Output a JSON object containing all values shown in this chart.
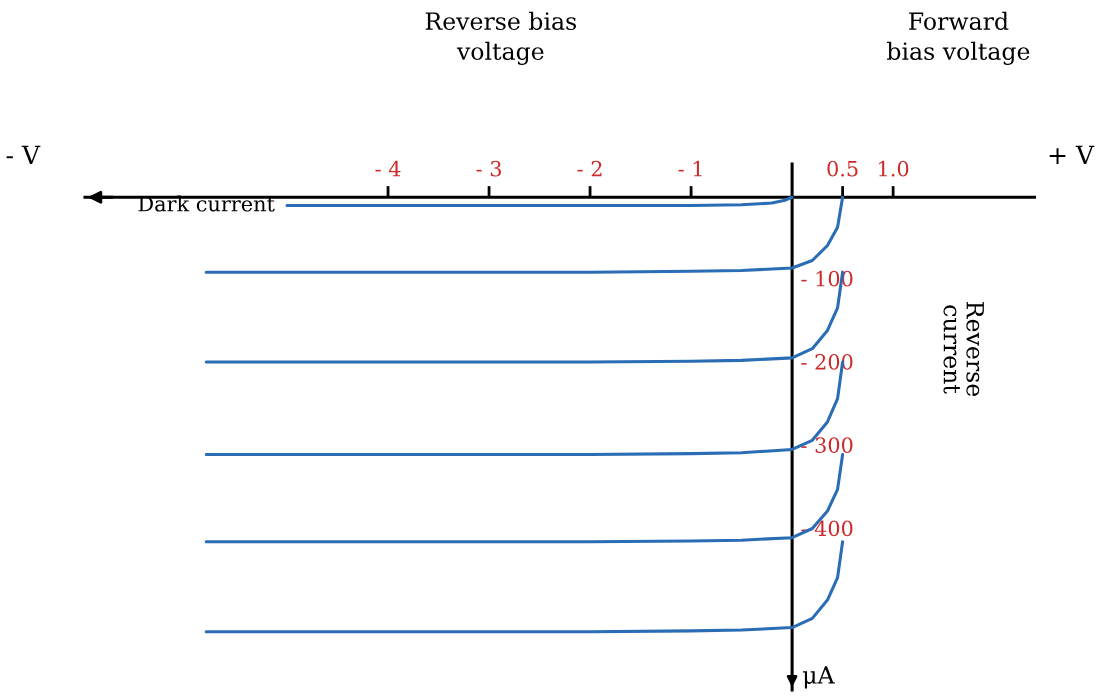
{
  "chart_data": {
    "type": "line",
    "ylabel": "Reverse\ncurrent",
    "annotations": [
      "Reverse bias\nvoltage",
      "Forward\nbias voltage",
      "- V",
      "+ V",
      "μA"
    ],
    "xlim": [
      -7,
      2.4
    ],
    "ylim": [
      -592,
      40
    ],
    "xticks": [
      {
        "value": -4,
        "label": "- 4"
      },
      {
        "value": -3,
        "label": "- 3"
      },
      {
        "value": -2,
        "label": "- 2"
      },
      {
        "value": -1,
        "label": "- 1"
      },
      {
        "value": 0.5,
        "label": "0.5"
      },
      {
        "value": 1.0,
        "label": "1.0"
      }
    ],
    "yticks": [
      {
        "value": -100,
        "label": "- 100"
      },
      {
        "value": -200,
        "label": "- 200"
      },
      {
        "value": -300,
        "label": "- 300"
      },
      {
        "value": -400,
        "label": "- 400"
      }
    ],
    "grid": false,
    "marker": "none",
    "line_style": "solid",
    "series": [
      {
        "name": "Dark current",
        "color": "#2a6db5",
        "x": [
          -5.0,
          -3,
          -1,
          -0.5,
          -0.2,
          -0.08,
          0
        ],
        "values": [
          -10,
          -10,
          -10,
          -9,
          -7,
          -4,
          0
        ]
      },
      {
        "color": "#2a6db5",
        "x": [
          -5.8,
          -4,
          -2,
          -1,
          -0.5,
          0,
          0.2,
          0.35,
          0.45,
          0.5
        ],
        "values": [
          -90,
          -90,
          -90,
          -89,
          -88,
          -85,
          -76,
          -58,
          -36,
          0
        ]
      },
      {
        "color": "#2a6db5",
        "x": [
          -5.8,
          -4,
          -2,
          -1,
          -0.5,
          0,
          0.2,
          0.35,
          0.45,
          0.5
        ],
        "values": [
          -198,
          -198,
          -198,
          -197,
          -196,
          -193,
          -182,
          -160,
          -133,
          -90
        ]
      },
      {
        "color": "#2a6db5",
        "x": [
          -5.8,
          -4,
          -2,
          -1,
          -0.5,
          0,
          0.2,
          0.35,
          0.45,
          0.5
        ],
        "values": [
          -309,
          -309,
          -309,
          -308,
          -307,
          -303,
          -292,
          -270,
          -242,
          -198
        ]
      },
      {
        "color": "#2a6db5",
        "x": [
          -5.8,
          -4,
          -2,
          -1,
          -0.5,
          0,
          0.2,
          0.35,
          0.45,
          0.5
        ],
        "values": [
          -414,
          -414,
          -414,
          -413,
          -412,
          -409,
          -398,
          -377,
          -351,
          -309
        ]
      },
      {
        "color": "#2a6db5",
        "x": [
          -5.8,
          -4,
          -2,
          -1,
          -0.5,
          0,
          0.2,
          0.35,
          0.45,
          0.5
        ],
        "values": [
          -522,
          -522,
          -522,
          -521,
          -520,
          -517,
          -506,
          -484,
          -457,
          -414
        ]
      }
    ]
  }
}
